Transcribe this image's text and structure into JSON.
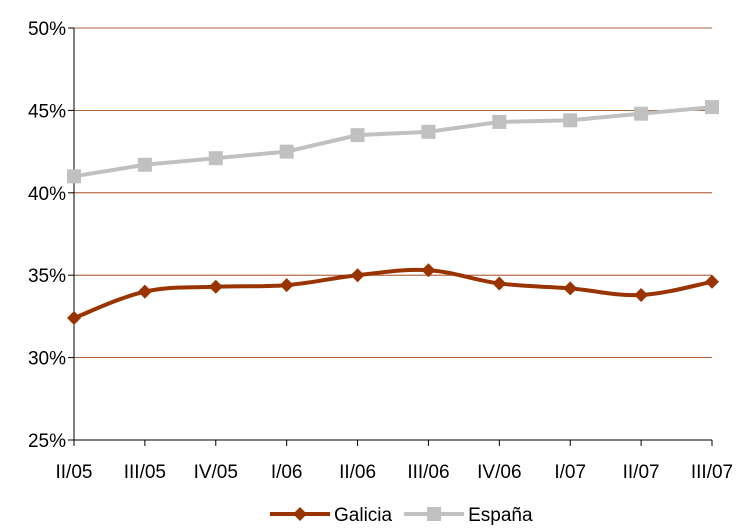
{
  "chart_data": {
    "type": "line",
    "title": "",
    "xlabel": "",
    "ylabel": "",
    "categories": [
      "II/05",
      "III/05",
      "IV/05",
      "I/06",
      "II/06",
      "III/06",
      "IV/06",
      "I/07",
      "II/07",
      "III/07"
    ],
    "yticks": [
      "25%",
      "30%",
      "35%",
      "40%",
      "45%",
      "50%"
    ],
    "ylim": [
      25,
      50
    ],
    "grid": true,
    "legend_position": "bottom",
    "series": [
      {
        "name": "Galicia",
        "color": "#993300",
        "marker": "diamond",
        "smooth": true,
        "values": [
          32.4,
          34.0,
          34.3,
          34.4,
          35.0,
          35.3,
          34.5,
          34.2,
          33.8,
          34.6
        ]
      },
      {
        "name": "España",
        "color": "#c0c0c0",
        "marker": "square",
        "smooth": false,
        "values": [
          41.0,
          41.7,
          42.1,
          42.5,
          43.5,
          43.7,
          44.3,
          44.4,
          44.8,
          45.2
        ]
      }
    ]
  }
}
